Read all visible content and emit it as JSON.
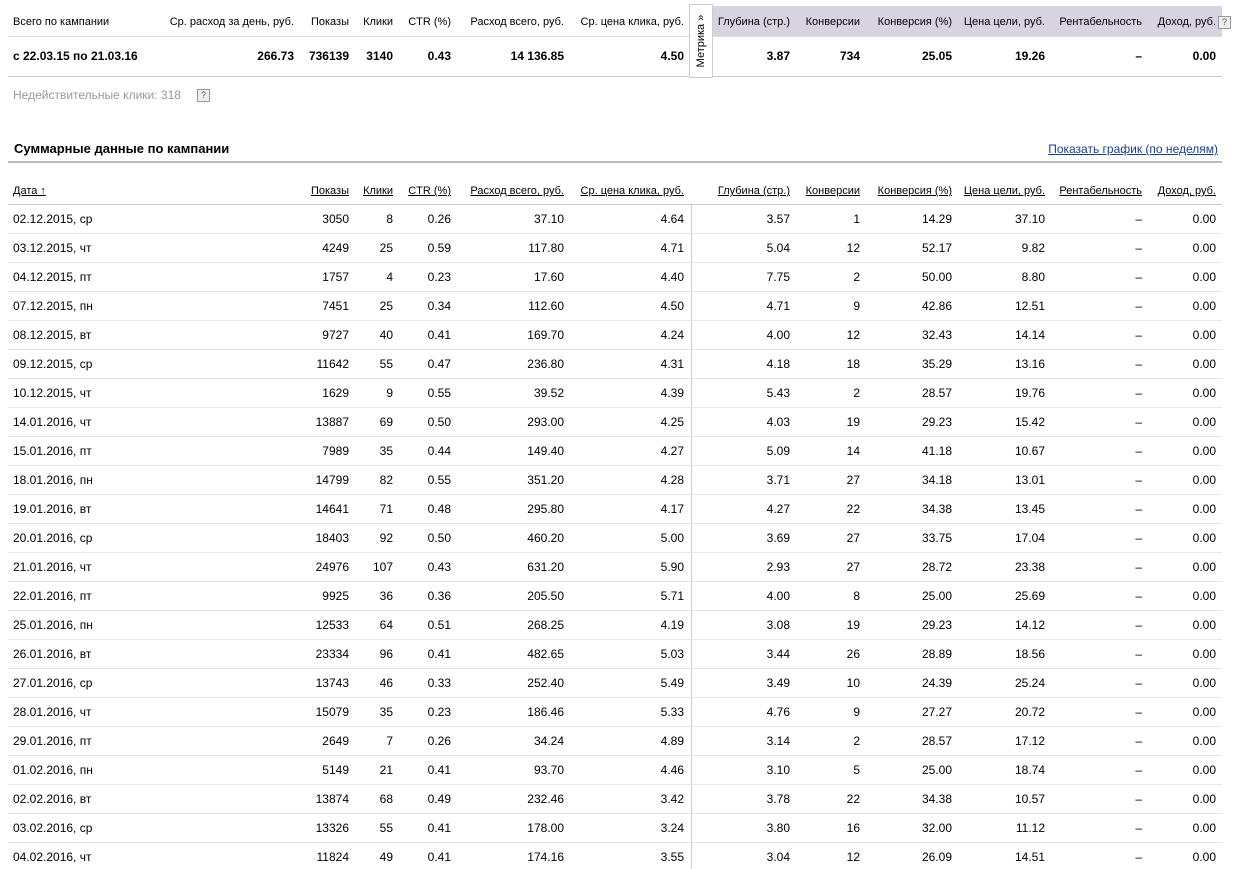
{
  "summary": {
    "headers": [
      "Всего по кампании",
      "Ср. расход за день, руб.",
      "Показы",
      "Клики",
      "CTR (%)",
      "Расход всего, руб.",
      "Ср. цена клика, руб.",
      "Глубина (стр.)",
      "Конверсии",
      "Конверсия (%)",
      "Цена цели, руб.",
      "Рентабельность",
      "Доход, руб."
    ],
    "help": "?",
    "metrika_tab": "Метрика »",
    "values": [
      "с 22.03.15 по 21.03.16",
      "266.73",
      "736139",
      "3140",
      "0.43",
      "14 136.85",
      "4.50",
      "3.87",
      "734",
      "25.05",
      "19.26",
      "–",
      "0.00"
    ]
  },
  "invalid_clicks": {
    "text": "Недействительные клики: 318",
    "help": "?"
  },
  "section": {
    "title": "Суммарные данные по кампании",
    "chart_link": "Показать график (по неделям)"
  },
  "details": {
    "headers": [
      "Дата ↑",
      "Показы",
      "Клики",
      "CTR (%)",
      "Расход всего, руб.",
      "Ср. цена клика, руб.",
      "Глубина (стр.)",
      "Конверсии",
      "Конверсия (%)",
      "Цена цели, руб.",
      "Рентабельность",
      "Доход, руб."
    ],
    "rows": [
      [
        "02.12.2015, ср",
        "3050",
        "8",
        "0.26",
        "37.10",
        "4.64",
        "3.57",
        "1",
        "14.29",
        "37.10",
        "–",
        "0.00"
      ],
      [
        "03.12.2015, чт",
        "4249",
        "25",
        "0.59",
        "117.80",
        "4.71",
        "5.04",
        "12",
        "52.17",
        "9.82",
        "–",
        "0.00"
      ],
      [
        "04.12.2015, пт",
        "1757",
        "4",
        "0.23",
        "17.60",
        "4.40",
        "7.75",
        "2",
        "50.00",
        "8.80",
        "–",
        "0.00"
      ],
      [
        "07.12.2015, пн",
        "7451",
        "25",
        "0.34",
        "112.60",
        "4.50",
        "4.71",
        "9",
        "42.86",
        "12.51",
        "–",
        "0.00"
      ],
      [
        "08.12.2015, вт",
        "9727",
        "40",
        "0.41",
        "169.70",
        "4.24",
        "4.00",
        "12",
        "32.43",
        "14.14",
        "–",
        "0.00"
      ],
      [
        "09.12.2015, ср",
        "11642",
        "55",
        "0.47",
        "236.80",
        "4.31",
        "4.18",
        "18",
        "35.29",
        "13.16",
        "–",
        "0.00"
      ],
      [
        "10.12.2015, чт",
        "1629",
        "9",
        "0.55",
        "39.52",
        "4.39",
        "5.43",
        "2",
        "28.57",
        "19.76",
        "–",
        "0.00"
      ],
      [
        "14.01.2016, чт",
        "13887",
        "69",
        "0.50",
        "293.00",
        "4.25",
        "4.03",
        "19",
        "29.23",
        "15.42",
        "–",
        "0.00"
      ],
      [
        "15.01.2016, пт",
        "7989",
        "35",
        "0.44",
        "149.40",
        "4.27",
        "5.09",
        "14",
        "41.18",
        "10.67",
        "–",
        "0.00"
      ],
      [
        "18.01.2016, пн",
        "14799",
        "82",
        "0.55",
        "351.20",
        "4.28",
        "3.71",
        "27",
        "34.18",
        "13.01",
        "–",
        "0.00"
      ],
      [
        "19.01.2016, вт",
        "14641",
        "71",
        "0.48",
        "295.80",
        "4.17",
        "4.27",
        "22",
        "34.38",
        "13.45",
        "–",
        "0.00"
      ],
      [
        "20.01.2016, ср",
        "18403",
        "92",
        "0.50",
        "460.20",
        "5.00",
        "3.69",
        "27",
        "33.75",
        "17.04",
        "–",
        "0.00"
      ],
      [
        "21.01.2016, чт",
        "24976",
        "107",
        "0.43",
        "631.20",
        "5.90",
        "2.93",
        "27",
        "28.72",
        "23.38",
        "–",
        "0.00"
      ],
      [
        "22.01.2016, пт",
        "9925",
        "36",
        "0.36",
        "205.50",
        "5.71",
        "4.00",
        "8",
        "25.00",
        "25.69",
        "–",
        "0.00"
      ],
      [
        "25.01.2016, пн",
        "12533",
        "64",
        "0.51",
        "268.25",
        "4.19",
        "3.08",
        "19",
        "29.23",
        "14.12",
        "–",
        "0.00"
      ],
      [
        "26.01.2016, вт",
        "23334",
        "96",
        "0.41",
        "482.65",
        "5.03",
        "3.44",
        "26",
        "28.89",
        "18.56",
        "–",
        "0.00"
      ],
      [
        "27.01.2016, ср",
        "13743",
        "46",
        "0.33",
        "252.40",
        "5.49",
        "3.49",
        "10",
        "24.39",
        "25.24",
        "–",
        "0.00"
      ],
      [
        "28.01.2016, чт",
        "15079",
        "35",
        "0.23",
        "186.46",
        "5.33",
        "4.76",
        "9",
        "27.27",
        "20.72",
        "–",
        "0.00"
      ],
      [
        "29.01.2016, пт",
        "2649",
        "7",
        "0.26",
        "34.24",
        "4.89",
        "3.14",
        "2",
        "28.57",
        "17.12",
        "–",
        "0.00"
      ],
      [
        "01.02.2016, пн",
        "5149",
        "21",
        "0.41",
        "93.70",
        "4.46",
        "3.10",
        "5",
        "25.00",
        "18.74",
        "–",
        "0.00"
      ],
      [
        "02.02.2016, вт",
        "13874",
        "68",
        "0.49",
        "232.46",
        "3.42",
        "3.78",
        "22",
        "34.38",
        "10.57",
        "–",
        "0.00"
      ],
      [
        "03.02.2016, ср",
        "13326",
        "55",
        "0.41",
        "178.00",
        "3.24",
        "3.80",
        "16",
        "32.00",
        "11.12",
        "–",
        "0.00"
      ],
      [
        "04.02.2016, чт",
        "11824",
        "49",
        "0.41",
        "174.16",
        "3.55",
        "3.04",
        "12",
        "26.09",
        "14.51",
        "–",
        "0.00"
      ]
    ]
  }
}
